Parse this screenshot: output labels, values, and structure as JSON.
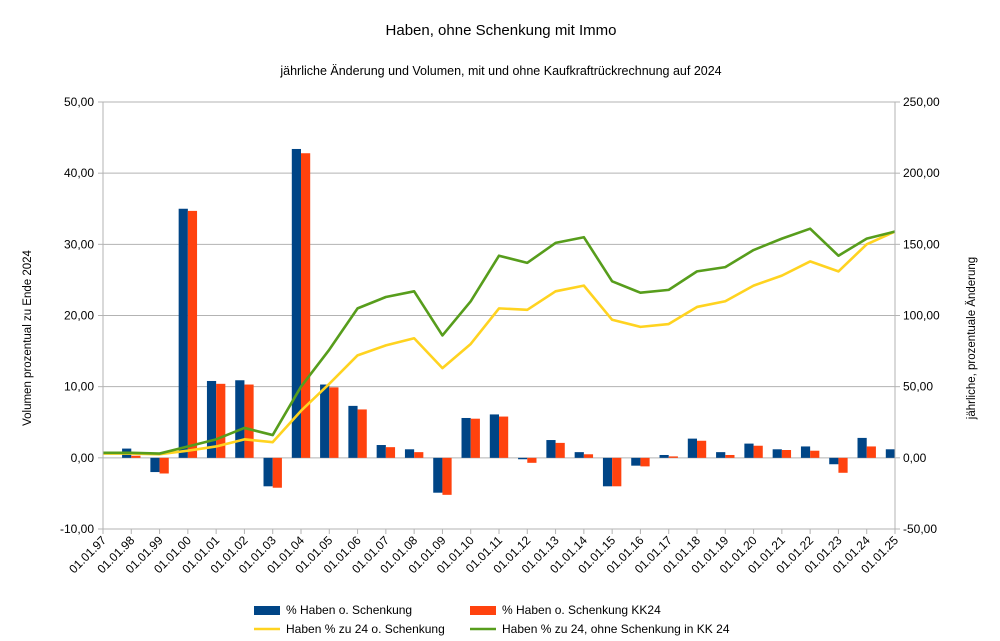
{
  "chart_data": {
    "type": "bar+line",
    "title": "Haben, ohne Schenkung mit Immo",
    "subtitle": "jährliche Änderung und Volumen, mit und ohne Kaufkraftrückrechnung auf 2024",
    "ylabel": "Volumen prozentual zu Ende 2024",
    "y2label": "jährliche, prozentuale Änderung",
    "ylim": [
      -10,
      50
    ],
    "y2lim": [
      -50,
      250
    ],
    "yticks": [
      "50,00",
      "40,00",
      "30,00",
      "20,00",
      "10,00",
      "0,00",
      "-10,00"
    ],
    "y2ticks": [
      "250,00",
      "200,00",
      "150,00",
      "100,00",
      "50,00",
      "0,00",
      "-50,00"
    ],
    "categories": [
      "01.01.97",
      "01.01.98",
      "01.01.99",
      "01.01.00",
      "01.01.01",
      "01.01.02",
      "01.01.03",
      "01.01.04",
      "01.01.05",
      "01.01.06",
      "01.01.07",
      "01.01.08",
      "01.01.09",
      "01.01.10",
      "01.01.11",
      "01.01.12",
      "01.01.13",
      "01.01.14",
      "01.01.15",
      "01.01.16",
      "01.01.17",
      "01.01.18",
      "01.01.19",
      "01.01.20",
      "01.01.21",
      "01.01.22",
      "01.01.23",
      "01.01.24",
      "01.01.25"
    ],
    "bar_series": [
      {
        "name": "% Haben o. Schenkung",
        "color": "#004586",
        "axis": "left",
        "values": [
          0,
          1.3,
          -2.0,
          35.0,
          10.8,
          10.9,
          -4.0,
          43.4,
          10.3,
          7.3,
          1.8,
          1.2,
          -4.9,
          5.6,
          6.1,
          -0.2,
          2.5,
          0.8,
          -4.0,
          -1.1,
          0.4,
          2.7,
          0.8,
          2.0,
          1.2,
          1.6,
          -0.9,
          2.8,
          1.2
        ]
      },
      {
        "name": "% Haben o. Schenkung KK24",
        "color": "#ff420e",
        "axis": "left",
        "values": [
          0,
          0.3,
          -2.2,
          34.7,
          10.4,
          10.3,
          -4.2,
          42.8,
          9.9,
          6.8,
          1.5,
          0.8,
          -5.2,
          5.5,
          5.8,
          -0.7,
          2.1,
          0.5,
          -4.0,
          -1.2,
          0.2,
          2.4,
          0.4,
          1.7,
          1.1,
          1.0,
          -2.1,
          1.6,
          null
        ]
      }
    ],
    "line_series": [
      {
        "name": "Haben % zu 24 o. Schenkung",
        "color": "#ffd320",
        "axis": "right",
        "values": [
          3,
          3,
          2.5,
          5,
          8,
          13,
          11,
          33,
          52,
          72,
          79,
          84,
          63,
          80,
          105,
          104,
          117,
          121,
          97,
          92,
          94,
          106,
          110,
          121,
          128,
          138,
          131,
          150,
          159
        ]
      },
      {
        "name": "Haben % zu 24, ohne Schenkung in KK 24",
        "color": "#579d1c",
        "axis": "right",
        "values": [
          3.5,
          3.5,
          3,
          8,
          13,
          21,
          16,
          50,
          76,
          105,
          113,
          117,
          86,
          110,
          142,
          137,
          151,
          155,
          124,
          116,
          118,
          131,
          134,
          146,
          154,
          161,
          142,
          154,
          159
        ]
      }
    ],
    "legend": [
      "% Haben o. Schenkung",
      "% Haben o. Schenkung KK24",
      "Haben % zu 24 o. Schenkung",
      "Haben % zu 24, ohne Schenkung in KK 24"
    ],
    "legend_position": "bottom"
  }
}
